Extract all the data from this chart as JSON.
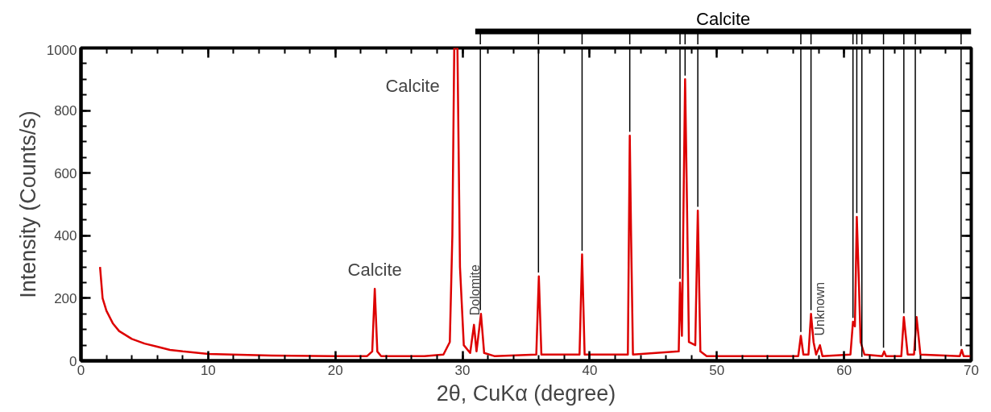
{
  "chart_data": {
    "type": "line",
    "xlabel": "2θ, CuKα (degree)",
    "ylabel": "Intensity (Counts/s)",
    "xlim": [
      0,
      70
    ],
    "ylim": [
      0,
      1000
    ],
    "xticks": [
      0,
      10,
      20,
      30,
      40,
      50,
      60,
      70
    ],
    "yticks": [
      0,
      200,
      400,
      600,
      800,
      1000
    ],
    "grid": false,
    "marker": "none",
    "line_style": "solid",
    "series": [
      {
        "color": "#dd0000",
        "x": [
          1.5,
          1.7,
          2,
          2.5,
          3,
          4,
          5,
          6,
          7,
          8,
          10,
          15,
          20,
          22.5,
          22.9,
          23.1,
          23.3,
          23.6,
          27,
          28.5,
          29.0,
          29.2,
          29.35,
          29.6,
          29.8,
          30.1,
          30.6,
          30.9,
          31.1,
          31.45,
          31.7,
          32.5,
          35.8,
          36.0,
          36.2,
          39.2,
          39.4,
          39.6,
          43.0,
          43.15,
          43.25,
          43.4,
          47.0,
          47.1,
          47.25,
          47.5,
          47.65,
          47.8,
          48.3,
          48.5,
          48.7,
          49.2,
          56.4,
          56.6,
          56.8,
          57.2,
          57.4,
          57.6,
          57.8,
          58.1,
          58.3,
          60.5,
          60.7,
          60.85,
          61.0,
          61.15,
          61.3,
          61.6,
          63.0,
          63.15,
          63.3,
          64.5,
          64.7,
          64.85,
          65.0,
          65.5,
          65.7,
          65.85,
          66.0,
          69.1,
          69.25,
          69.4,
          70
        ],
        "values": [
          300,
          200,
          160,
          120,
          95,
          70,
          55,
          45,
          35,
          30,
          22,
          17,
          15,
          15,
          30,
          230,
          30,
          15,
          15,
          20,
          60,
          400,
          1000,
          1000,
          300,
          50,
          25,
          115,
          30,
          150,
          25,
          15,
          20,
          270,
          20,
          20,
          340,
          20,
          20,
          720,
          410,
          20,
          30,
          250,
          80,
          900,
          500,
          60,
          50,
          480,
          30,
          15,
          15,
          80,
          20,
          20,
          150,
          60,
          20,
          50,
          15,
          20,
          125,
          110,
          460,
          270,
          60,
          20,
          15,
          30,
          15,
          15,
          140,
          80,
          20,
          20,
          140,
          80,
          20,
          15,
          35,
          15,
          15
        ]
      }
    ],
    "ref_lines": [
      {
        "axis": "x",
        "value": 31.4
      },
      {
        "axis": "x",
        "value": 35.97
      },
      {
        "axis": "x",
        "value": 39.4
      },
      {
        "axis": "x",
        "value": 43.15
      },
      {
        "axis": "x",
        "value": 47.1
      },
      {
        "axis": "x",
        "value": 47.5
      },
      {
        "axis": "x",
        "value": 48.5
      },
      {
        "axis": "x",
        "value": 56.6
      },
      {
        "axis": "x",
        "value": 57.4
      },
      {
        "axis": "x",
        "value": 60.7
      },
      {
        "axis": "x",
        "value": 61.0
      },
      {
        "axis": "x",
        "value": 61.4
      },
      {
        "axis": "x",
        "value": 63.1
      },
      {
        "axis": "x",
        "value": 64.7
      },
      {
        "axis": "x",
        "value": 65.6
      },
      {
        "axis": "x",
        "value": 69.2
      }
    ],
    "annotations": [
      "Calcite",
      {
        "text": "Calcite",
        "x": 23.1,
        "y": 230
      },
      {
        "text": "Calcite",
        "x": 29.4,
        "y": 1000
      },
      {
        "text": "Dolomite",
        "x": 31.0,
        "y": 115
      },
      {
        "text": "Unknown",
        "x": 58.1,
        "y": 50
      }
    ]
  }
}
